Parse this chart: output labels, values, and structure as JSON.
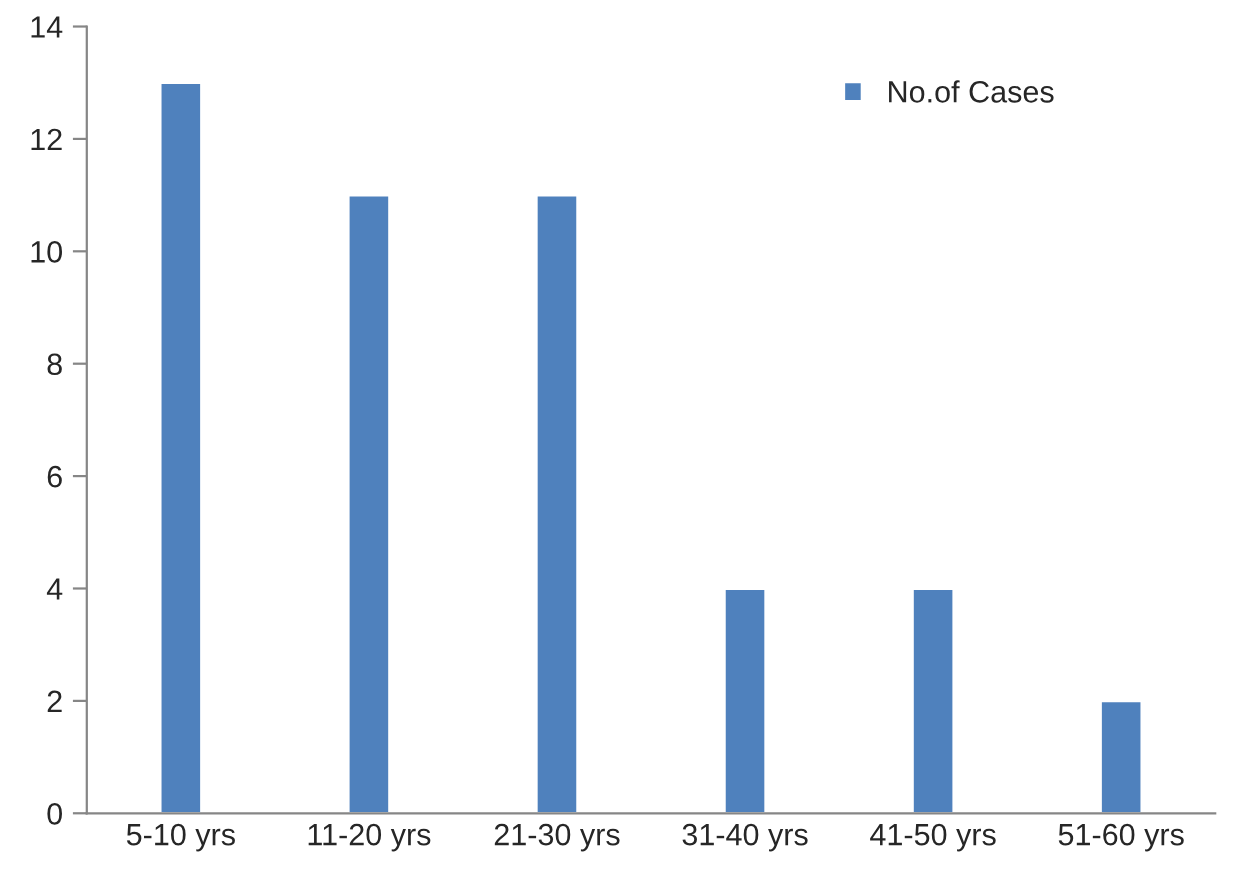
{
  "chart_data": {
    "type": "bar",
    "categories": [
      "5-10 yrs",
      "11-20 yrs",
      "21-30 yrs",
      "31-40 yrs",
      "41-50 yrs",
      "51-60 yrs"
    ],
    "series": [
      {
        "name": "No.of Cases",
        "color": "#4f81bd",
        "values": [
          13,
          11,
          11,
          4,
          4,
          2
        ]
      }
    ],
    "ylim": [
      0,
      14
    ],
    "yticks": [
      0,
      2,
      4,
      6,
      8,
      10,
      12,
      14
    ],
    "grid": false,
    "legend": "top right"
  }
}
